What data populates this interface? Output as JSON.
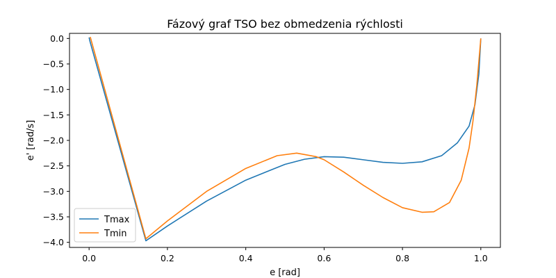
{
  "chart_data": {
    "type": "line",
    "title": "Fázový graf TSO bez obmedzenia rýchlosti",
    "xlabel": "e [rad]",
    "ylabel": "e' [rad/s]",
    "xlim": [
      -0.05,
      1.05
    ],
    "ylim": [
      -4.1,
      0.1
    ],
    "xticks": [
      0.0,
      0.2,
      0.4,
      0.6,
      0.8,
      1.0
    ],
    "xtick_labels": [
      "0.0",
      "0.2",
      "0.4",
      "0.6",
      "0.8",
      "1.0"
    ],
    "yticks": [
      0.0,
      -0.5,
      -1.0,
      -1.5,
      -2.0,
      -2.5,
      -3.0,
      -3.5,
      -4.0
    ],
    "ytick_labels": [
      "0.0",
      "−0.5",
      "−1.0",
      "−1.5",
      "−2.0",
      "−2.5",
      "−3.0",
      "−3.5",
      "−4.0"
    ],
    "grid": false,
    "legend_position": "lower-left",
    "series": [
      {
        "name": "Tmax",
        "color": "#1f77b4",
        "x": [
          0.0,
          0.002,
          0.145,
          0.2,
          0.3,
          0.4,
          0.5,
          0.55,
          0.6,
          0.65,
          0.7,
          0.75,
          0.8,
          0.85,
          0.9,
          0.94,
          0.97,
          0.985,
          0.995,
          1.0
        ],
        "y": [
          0.02,
          -0.05,
          -3.97,
          -3.68,
          -3.19,
          -2.78,
          -2.47,
          -2.37,
          -2.32,
          -2.33,
          -2.38,
          -2.43,
          -2.45,
          -2.42,
          -2.3,
          -2.05,
          -1.72,
          -1.3,
          -0.7,
          0.0
        ]
      },
      {
        "name": "Tmin",
        "color": "#ff7f0e",
        "x": [
          0.003,
          0.145,
          0.2,
          0.3,
          0.4,
          0.48,
          0.53,
          0.58,
          0.6,
          0.65,
          0.7,
          0.75,
          0.8,
          0.85,
          0.88,
          0.92,
          0.95,
          0.97,
          0.98,
          0.99,
          0.995,
          1.0
        ],
        "y": [
          0.03,
          -3.93,
          -3.58,
          -3.0,
          -2.55,
          -2.3,
          -2.25,
          -2.32,
          -2.38,
          -2.62,
          -2.88,
          -3.12,
          -3.32,
          -3.41,
          -3.4,
          -3.22,
          -2.78,
          -2.15,
          -1.62,
          -0.9,
          -0.45,
          0.0
        ]
      }
    ]
  }
}
